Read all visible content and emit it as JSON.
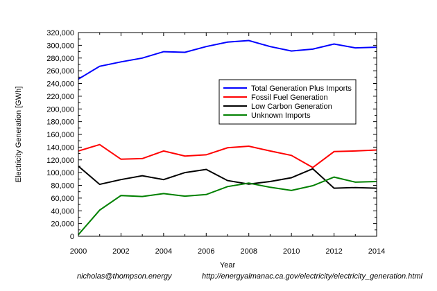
{
  "chart_data": {
    "type": "line",
    "title": "",
    "xlabel": "Year",
    "ylabel": "Electricity Generation [GWh]",
    "xlim": [
      2000,
      2014
    ],
    "ylim": [
      0,
      320000
    ],
    "xticks": [
      2000,
      2002,
      2004,
      2006,
      2008,
      2010,
      2012,
      2014
    ],
    "xtick_labels": [
      "2000",
      "2002",
      "2004",
      "2006",
      "2008",
      "2010",
      "2012",
      "2014"
    ],
    "yticks": [
      0,
      20000,
      40000,
      60000,
      80000,
      100000,
      120000,
      140000,
      160000,
      180000,
      200000,
      220000,
      240000,
      260000,
      280000,
      300000,
      320000
    ],
    "ytick_labels": [
      "0",
      "20,000",
      "40,000",
      "60,000",
      "80,000",
      "100,000",
      "120,000",
      "140,000",
      "160,000",
      "180,000",
      "200,000",
      "220,000",
      "240,000",
      "260,000",
      "280,000",
      "300,000",
      "320,000"
    ],
    "grid": false,
    "legend_position": "upper-right",
    "x": [
      2000,
      2001,
      2002,
      2003,
      2004,
      2005,
      2006,
      2007,
      2008,
      2009,
      2010,
      2011,
      2012,
      2013,
      2014
    ],
    "series": [
      {
        "name": "Total Generation Plus Imports",
        "color": "#0000ff",
        "values": [
          247000,
          267000,
          274000,
          280000,
          290000,
          289000,
          298000,
          305000,
          307500,
          298000,
          291000,
          294000,
          302000,
          296000,
          297000
        ]
      },
      {
        "name": "Fossil Fuel Generation",
        "color": "#ff0000",
        "values": [
          134000,
          144000,
          121000,
          122000,
          134000,
          126000,
          128000,
          139000,
          141500,
          134000,
          127000,
          108000,
          133000,
          134000,
          135500
        ]
      },
      {
        "name": "Low Carbon Generation",
        "color": "#000000",
        "values": [
          110000,
          81500,
          89000,
          95000,
          89000,
          100000,
          105000,
          87500,
          82000,
          86000,
          92000,
          106000,
          75500,
          76500,
          75500
        ]
      },
      {
        "name": "Unknown Imports",
        "color": "#008000",
        "values": [
          2500,
          41000,
          64000,
          62500,
          67000,
          63000,
          65500,
          78000,
          83500,
          77000,
          72000,
          79500,
          93000,
          85000,
          86000
        ]
      }
    ]
  },
  "footer": {
    "email": "nicholas@thompson.energy",
    "source_url": "http://energyalmanac.ca.gov/electricity/electricity_generation.html"
  }
}
